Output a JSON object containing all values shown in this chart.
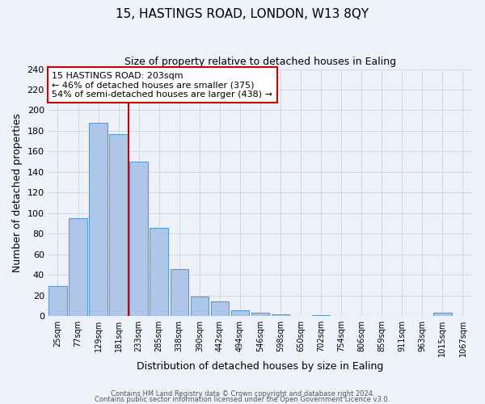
{
  "title": "15, HASTINGS ROAD, LONDON, W13 8QY",
  "subtitle": "Size of property relative to detached houses in Ealing",
  "xlabel": "Distribution of detached houses by size in Ealing",
  "ylabel": "Number of detached properties",
  "bar_labels": [
    "25sqm",
    "77sqm",
    "129sqm",
    "181sqm",
    "233sqm",
    "285sqm",
    "338sqm",
    "390sqm",
    "442sqm",
    "494sqm",
    "546sqm",
    "598sqm",
    "650sqm",
    "702sqm",
    "754sqm",
    "806sqm",
    "859sqm",
    "911sqm",
    "963sqm",
    "1015sqm",
    "1067sqm"
  ],
  "bar_values": [
    29,
    95,
    188,
    177,
    150,
    86,
    46,
    19,
    14,
    6,
    3,
    2,
    0,
    1,
    0,
    0,
    0,
    0,
    0,
    3,
    0
  ],
  "bar_color": "#aec6e8",
  "bar_edge_color": "#5b9bd5",
  "vline_x": 3.5,
  "vline_color": "#cc0000",
  "ylim": [
    0,
    240
  ],
  "yticks": [
    0,
    20,
    40,
    60,
    80,
    100,
    120,
    140,
    160,
    180,
    200,
    220,
    240
  ],
  "annotation_title": "15 HASTINGS ROAD: 203sqm",
  "annotation_line1": "← 46% of detached houses are smaller (375)",
  "annotation_line2": "54% of semi-detached houses are larger (438) →",
  "annotation_box_color": "#ffffff",
  "annotation_box_edge": "#cc0000",
  "grid_color": "#d0d8e8",
  "background_color": "#eef2f8",
  "footer1": "Contains HM Land Registry data © Crown copyright and database right 2024.",
  "footer2": "Contains public sector information licensed under the Open Government Licence v3.0."
}
